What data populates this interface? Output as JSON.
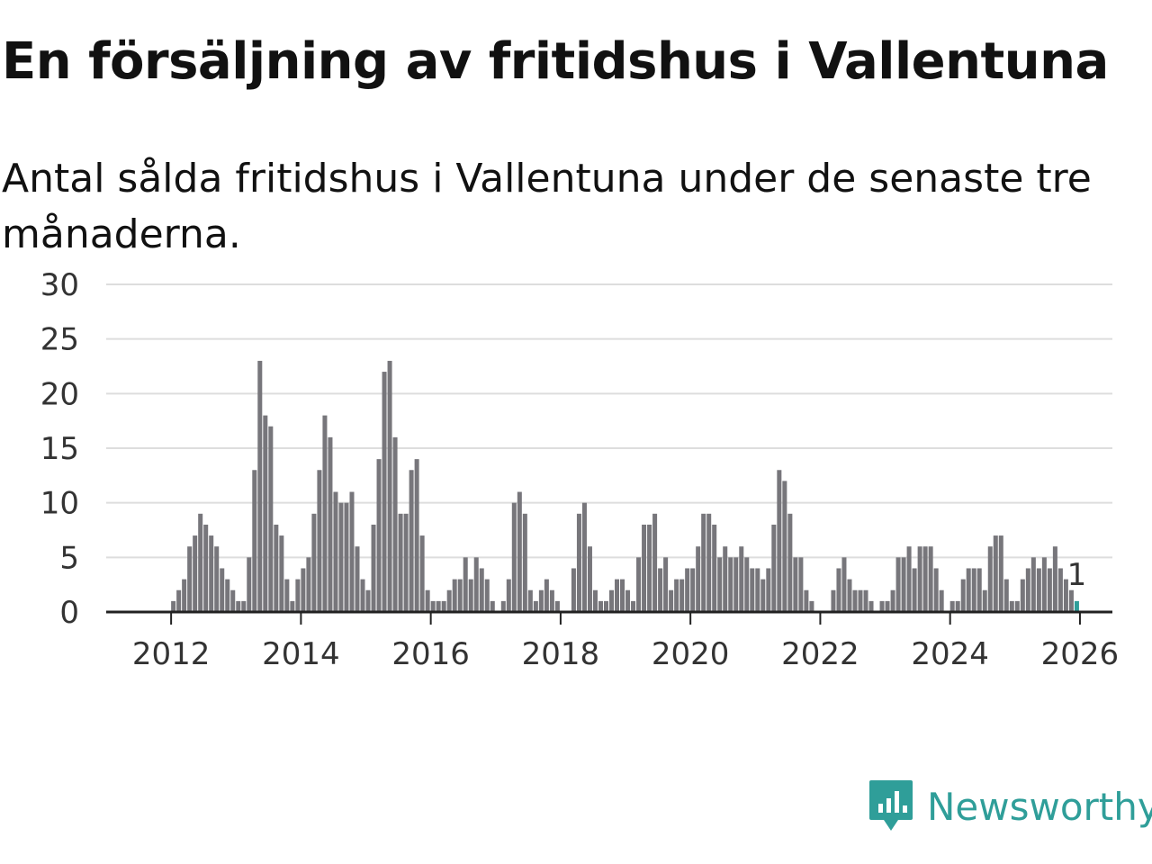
{
  "header": {
    "title": "En försäljning av fritidshus i Vallentuna",
    "subtitle": "Antal sålda fritidshus i Vallentuna under de senaste tre månaderna."
  },
  "brand": {
    "name": "Newsworthy",
    "color": "#2f9e99",
    "icon": "newsworthy-logo-icon"
  },
  "colors": {
    "bar": "#77767b",
    "highlight": "#2f9e99",
    "grid": "#dddddd",
    "axis": "#222222"
  },
  "chart_data": {
    "type": "bar",
    "title": "En försäljning av fritidshus i Vallentuna",
    "subtitle": "Antal sålda fritidshus i Vallentuna under de senaste tre månaderna.",
    "x_start": "2011-01",
    "x_end": "2026-07",
    "x_ticks": [
      "2012",
      "2014",
      "2016",
      "2018",
      "2020",
      "2022",
      "2024",
      "2026"
    ],
    "y_ticks": [
      0,
      5,
      10,
      15,
      20,
      25,
      30
    ],
    "ylim": [
      0,
      30
    ],
    "grid": true,
    "highlight_label": "1",
    "series": [
      {
        "x_start": "2012-01",
        "values": [
          1,
          2,
          3,
          6,
          7,
          9,
          8,
          7,
          6,
          4,
          3,
          2,
          1,
          1,
          5,
          13,
          23,
          18,
          17,
          8,
          7,
          3,
          1,
          3,
          4,
          5,
          9,
          13,
          18,
          16,
          11,
          10,
          10,
          11,
          6,
          3,
          2,
          8,
          14,
          22,
          23,
          16,
          9,
          9,
          13,
          14,
          7,
          2,
          1,
          1,
          1,
          2,
          3,
          3,
          5,
          3,
          5,
          4,
          3,
          1,
          0,
          1,
          3,
          10,
          11,
          9,
          2,
          1,
          2,
          3,
          2,
          1,
          0,
          0,
          4,
          9,
          10,
          6,
          2,
          1,
          1,
          2,
          3,
          3,
          2,
          1,
          5,
          8,
          8,
          9,
          4,
          5,
          2,
          3,
          3,
          4,
          4,
          6,
          9,
          9,
          8,
          5,
          6,
          5,
          5,
          6,
          5,
          4,
          4,
          3,
          4,
          8,
          13,
          12,
          9,
          5,
          5,
          2,
          1,
          0,
          0,
          0,
          2,
          4,
          5,
          3,
          2,
          2,
          2,
          1,
          0,
          1,
          1,
          2,
          5,
          5,
          6,
          4,
          6,
          6,
          6,
          4,
          2,
          0,
          1,
          1,
          3,
          4,
          4,
          4,
          2,
          6,
          7,
          7,
          3,
          1,
          1,
          3,
          4,
          5,
          4,
          5,
          4,
          6,
          4,
          3,
          2,
          1
        ]
      }
    ]
  }
}
